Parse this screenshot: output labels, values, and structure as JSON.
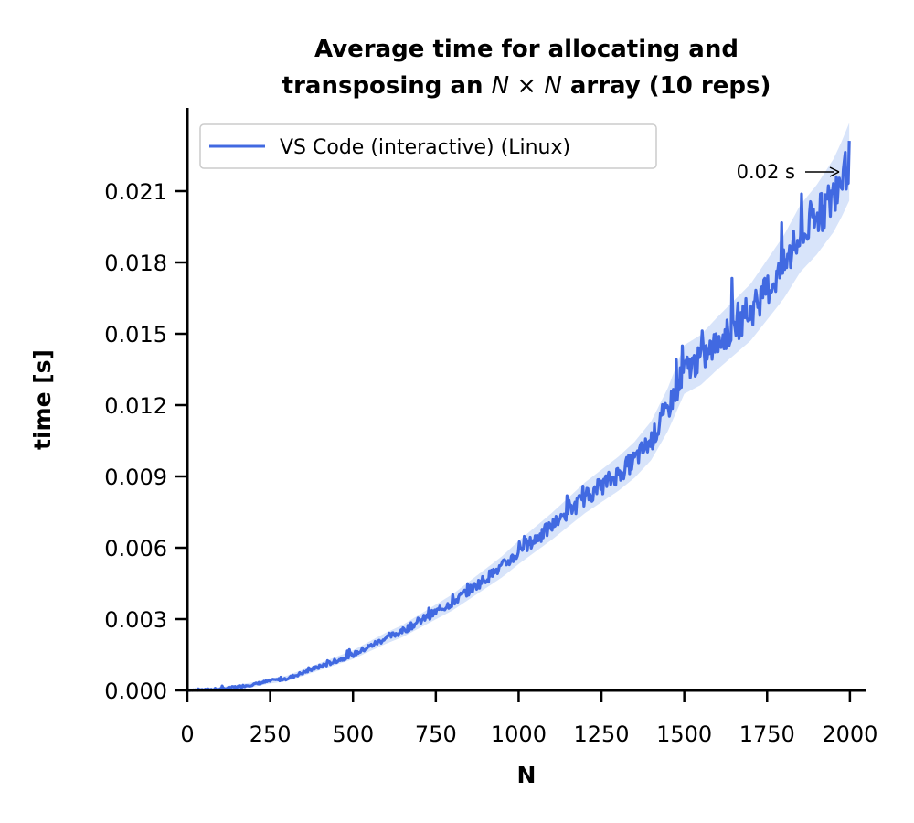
{
  "chart_data": {
    "type": "line",
    "title_line1": "Average time for allocating and",
    "title_line2_prefix": "transposing an ",
    "title_line2_math": "N × N",
    "title_line2_suffix": " array (10 reps)",
    "xlabel": "N",
    "ylabel": "time [s]",
    "xlim": [
      0,
      2050
    ],
    "ylim": [
      0,
      0.0245
    ],
    "xticks": [
      0,
      250,
      500,
      750,
      1000,
      1250,
      1500,
      1750,
      2000
    ],
    "xtick_labels": [
      "0",
      "250",
      "500",
      "750",
      "1000",
      "1250",
      "1500",
      "1750",
      "2000"
    ],
    "yticks": [
      0,
      0.003,
      0.006,
      0.009,
      0.012,
      0.015,
      0.018,
      0.021
    ],
    "ytick_labels": [
      "0.000",
      "0.003",
      "0.006",
      "0.009",
      "0.012",
      "0.015",
      "0.018",
      "0.021"
    ],
    "legend_position": "top-left",
    "grid": false,
    "series": [
      {
        "name": "VS Code (interactive) (Linux)",
        "color": "#4169e1",
        "band_color": "#a9c4f5",
        "x": [
          0,
          100,
          200,
          250,
          300,
          400,
          500,
          600,
          650,
          700,
          750,
          800,
          900,
          950,
          1000,
          1100,
          1200,
          1300,
          1350,
          1400,
          1450,
          1500,
          1550,
          1600,
          1700,
          1800,
          1850,
          1900,
          1950,
          1975,
          2000
        ],
        "y": [
          0,
          5e-05,
          0.00025,
          0.0004,
          0.0005,
          0.001,
          0.0015,
          0.0022,
          0.0025,
          0.0029,
          0.0033,
          0.0037,
          0.0047,
          0.0052,
          0.0058,
          0.0069,
          0.0081,
          0.0091,
          0.0097,
          0.0105,
          0.0118,
          0.0135,
          0.0139,
          0.0146,
          0.0159,
          0.0178,
          0.019,
          0.0198,
          0.0208,
          0.0215,
          0.0223
        ]
      }
    ],
    "annotation": {
      "text": "0.02 s",
      "x": 2000,
      "y": 0.0223
    }
  }
}
